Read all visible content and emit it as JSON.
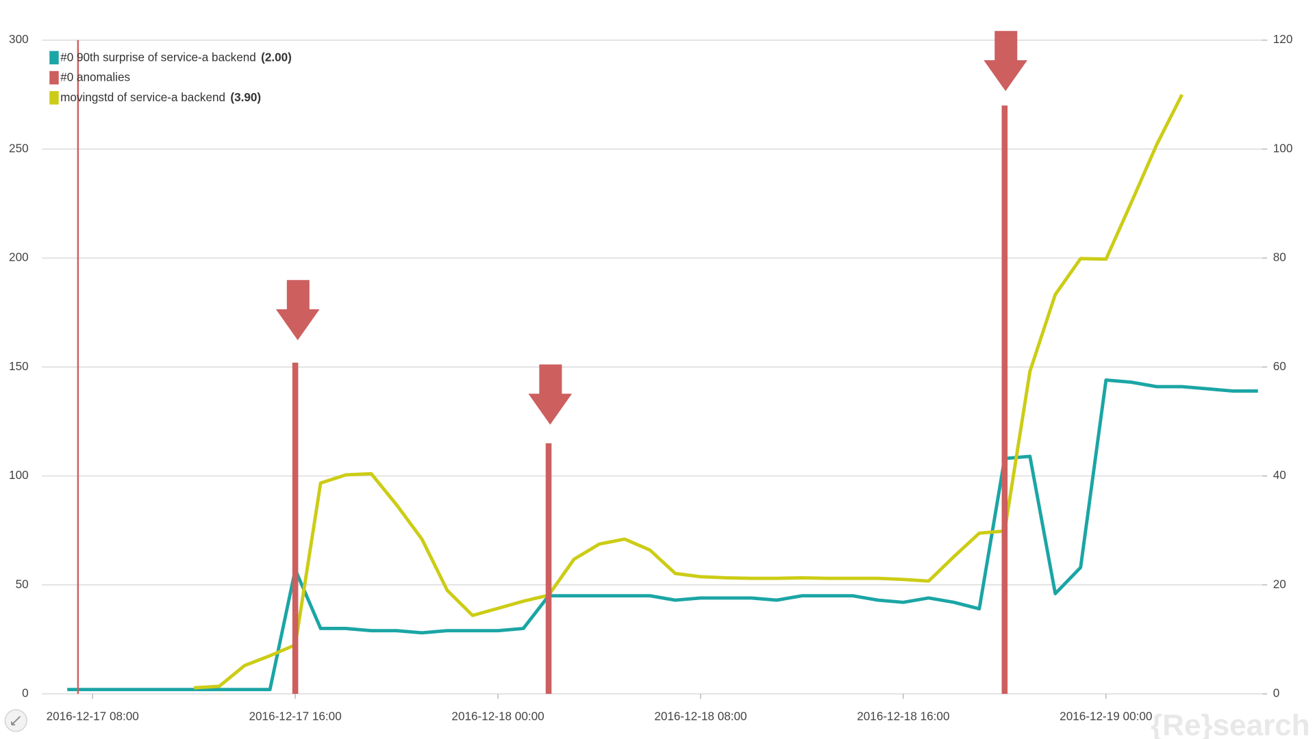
{
  "chart_data": {
    "type": "line",
    "x": [
      "2016-12-17 07:00",
      "2016-12-17 08:00",
      "2016-12-17 09:00",
      "2016-12-17 10:00",
      "2016-12-17 11:00",
      "2016-12-17 12:00",
      "2016-12-17 13:00",
      "2016-12-17 14:00",
      "2016-12-17 15:00",
      "2016-12-17 16:00",
      "2016-12-17 17:00",
      "2016-12-17 18:00",
      "2016-12-17 19:00",
      "2016-12-17 20:00",
      "2016-12-17 21:00",
      "2016-12-17 22:00",
      "2016-12-17 23:00",
      "2016-12-18 00:00",
      "2016-12-18 01:00",
      "2016-12-18 02:00",
      "2016-12-18 03:00",
      "2016-12-18 04:00",
      "2016-12-18 05:00",
      "2016-12-18 06:00",
      "2016-12-18 07:00",
      "2016-12-18 08:00",
      "2016-12-18 09:00",
      "2016-12-18 10:00",
      "2016-12-18 11:00",
      "2016-12-18 12:00",
      "2016-12-18 13:00",
      "2016-12-18 14:00",
      "2016-12-18 15:00",
      "2016-12-18 16:00",
      "2016-12-18 17:00",
      "2016-12-18 18:00",
      "2016-12-18 19:00",
      "2016-12-18 20:00",
      "2016-12-18 21:00",
      "2016-12-18 22:00",
      "2016-12-18 23:00",
      "2016-12-19 00:00",
      "2016-12-19 01:00",
      "2016-12-19 02:00",
      "2016-12-19 03:00",
      "2016-12-19 04:00",
      "2016-12-19 05:00",
      "2016-12-19 06:00"
    ],
    "xlim": [
      "2016-12-17 06:00",
      "2016-12-19 06:00"
    ],
    "xticks": [
      "2016-12-17 08:00",
      "2016-12-17 16:00",
      "2016-12-18 00:00",
      "2016-12-18 08:00",
      "2016-12-18 16:00",
      "2016-12-19 00:00"
    ],
    "ylim": [
      0,
      300
    ],
    "yticks": [
      0,
      50,
      100,
      150,
      200,
      250,
      300
    ],
    "y2lim": [
      0,
      120
    ],
    "y2ticks": [
      0,
      20,
      40,
      60,
      80,
      100,
      120
    ],
    "grid": true,
    "legend": "upper left",
    "series": [
      {
        "name": "#0 90th surprise of service-a backend",
        "legend_label": "(2.00)",
        "color": "#1ba5a5",
        "style": "line",
        "values": [
          2,
          2,
          2,
          2,
          2,
          2,
          2,
          2,
          2,
          57,
          30,
          30,
          29,
          29,
          28,
          29,
          29,
          29,
          30,
          45,
          45,
          45,
          45,
          45,
          43,
          44,
          44,
          44,
          43,
          45,
          45,
          45,
          43,
          42,
          44,
          42,
          39,
          108,
          109,
          46,
          58,
          144,
          143,
          141,
          141,
          140,
          139,
          139
        ]
      },
      {
        "name": "#0 anomalies",
        "color": "#cd5f5f",
        "style": "bar",
        "values": [
          null,
          null,
          null,
          null,
          null,
          null,
          null,
          null,
          null,
          152,
          null,
          null,
          null,
          null,
          null,
          null,
          null,
          null,
          null,
          115,
          null,
          null,
          null,
          null,
          null,
          null,
          null,
          null,
          null,
          null,
          null,
          null,
          null,
          null,
          null,
          null,
          null,
          270,
          null,
          null,
          null,
          null,
          null,
          null,
          null,
          null,
          null,
          null
        ]
      },
      {
        "name": "movingstd of service-a backend",
        "legend_label": "(3.90)",
        "color": "#cccc16",
        "style": "line",
        "axis": "y2",
        "values": [
          null,
          null,
          null,
          null,
          null,
          1.1,
          1.4,
          5.2,
          7,
          9,
          38.7,
          40.2,
          40.4,
          34.7,
          28.4,
          19,
          14.4,
          15.7,
          17,
          18.1,
          24.7,
          27.5,
          28.4,
          26.4,
          22.1,
          21.5,
          21.3,
          21.2,
          21.2,
          21.3,
          21.2,
          21.2,
          21.2,
          21,
          20.7,
          25.2,
          29.5,
          29.9,
          59.2,
          73.3,
          79.9,
          79.8,
          90.2,
          100.8,
          110,
          null,
          null,
          null
        ]
      }
    ],
    "watermark": "{Re}search"
  }
}
